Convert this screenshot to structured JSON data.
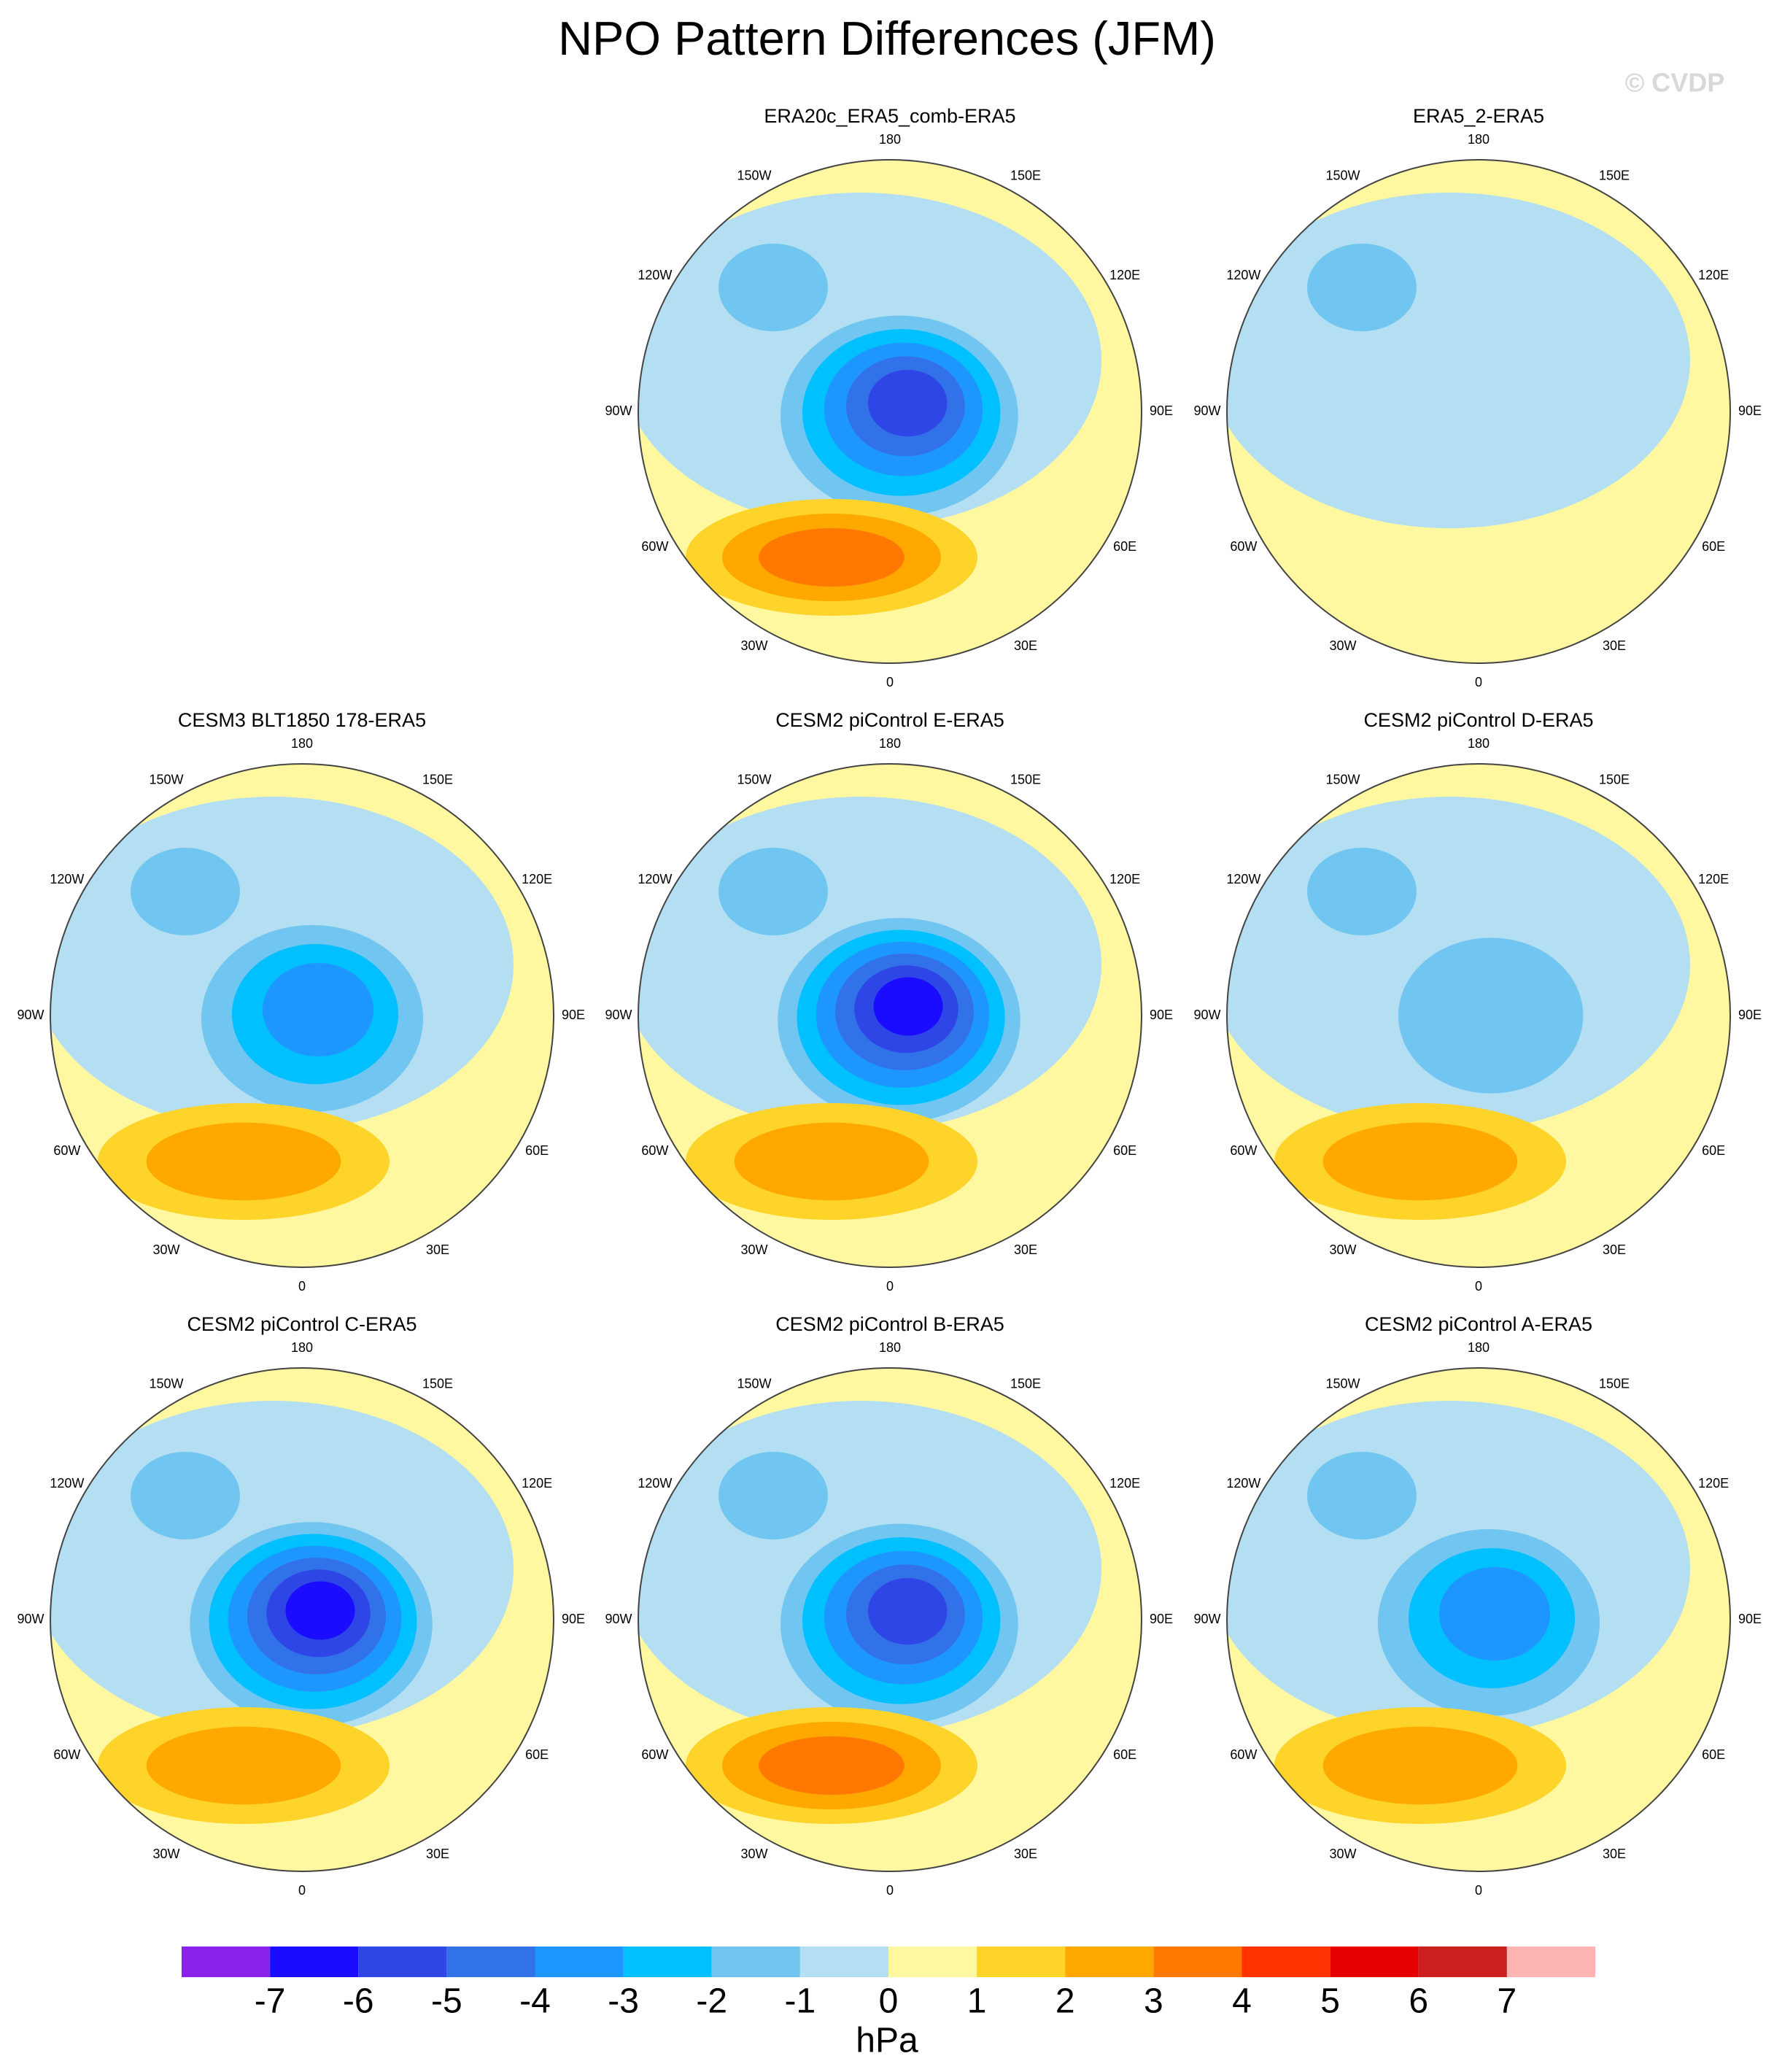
{
  "chart_data": {
    "type": "contour-map",
    "title": "NPO Pattern Differences (JFM)",
    "watermark": "© CVDP",
    "panels": [
      {
        "title": "ERA20c_ERA5_comb-ERA5"
      },
      {
        "title": "ERA5_2-ERA5"
      },
      {
        "title": "CESM3 BLT1850 178-ERA5"
      },
      {
        "title": "CESM2 piControl E-ERA5"
      },
      {
        "title": "CESM2 piControl D-ERA5"
      },
      {
        "title": "CESM2 piControl C-ERA5"
      },
      {
        "title": "CESM2 piControl B-ERA5"
      },
      {
        "title": "CESM2 piControl A-ERA5"
      }
    ],
    "lon_labels": [
      "180",
      "150E",
      "120E",
      "90E",
      "60E",
      "30E",
      "0",
      "30W",
      "60W",
      "90W",
      "120W",
      "150W"
    ],
    "colorbar": {
      "ticks": [
        -7,
        -6,
        -5,
        -4,
        -3,
        -2,
        -1,
        0,
        1,
        2,
        3,
        4,
        5,
        6,
        7
      ],
      "colors": [
        "#8a22ee",
        "#1a0cff",
        "#2f46e6",
        "#3272e8",
        "#1e96ff",
        "#00c0ff",
        "#70c6f0",
        "#b4def2",
        "#fff8a0",
        "#ffd42a",
        "#ffa800",
        "#ff7800",
        "#ff3200",
        "#e60000",
        "#cc1f1f",
        "#ffb4b4"
      ],
      "label": "hPa"
    }
  }
}
